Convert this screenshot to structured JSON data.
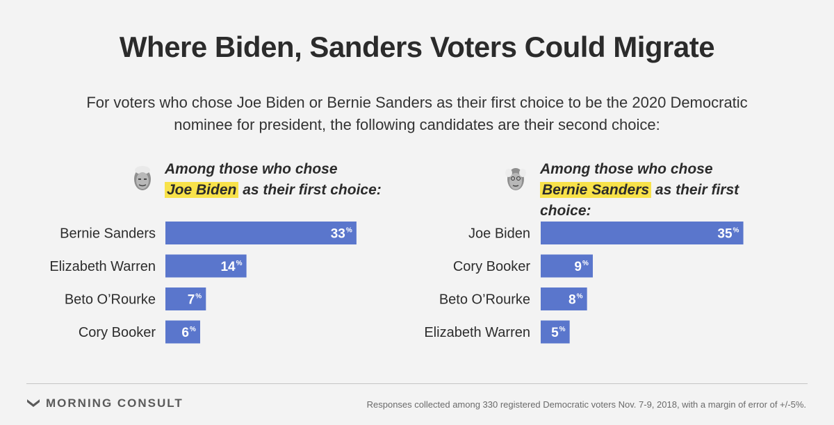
{
  "title": "Where Biden, Sanders Voters Could Migrate",
  "subtitle": "For voters who chose Joe Biden or Bernie Sanders as their first choice to be the 2020 Democratic nominee for president, the following candidates are their second choice:",
  "colors": {
    "bar": "#5a76cc",
    "highlight": "#f8e24a",
    "background": "#f3f3f3"
  },
  "chart_data": [
    {
      "type": "bar",
      "orientation": "horizontal",
      "heading_before": "Among those who chose",
      "heading_highlight": "Joe Biden",
      "heading_after": "as their first choice:",
      "categories": [
        "Bernie Sanders",
        "Elizabeth Warren",
        "Beto O’Rourke",
        "Cory Booker"
      ],
      "values": [
        33,
        14,
        7,
        6
      ],
      "value_suffix": "%",
      "xlim": [
        0,
        40
      ]
    },
    {
      "type": "bar",
      "orientation": "horizontal",
      "heading_before": "Among those who chose",
      "heading_highlight": "Bernie Sanders",
      "heading_after": "as their first choice:",
      "categories": [
        "Joe Biden",
        "Cory Booker",
        "Beto O’Rourke",
        "Elizabeth Warren"
      ],
      "values": [
        35,
        9,
        8,
        5
      ],
      "value_suffix": "%",
      "xlim": [
        0,
        40
      ]
    }
  ],
  "footer": {
    "brand": "MORNING CONSULT",
    "logo_icon": "morning-consult-logo-icon",
    "source": "Responses collected among 330 registered Democratic voters Nov. 7-9, 2018, with a margin of error of +/-5%."
  }
}
